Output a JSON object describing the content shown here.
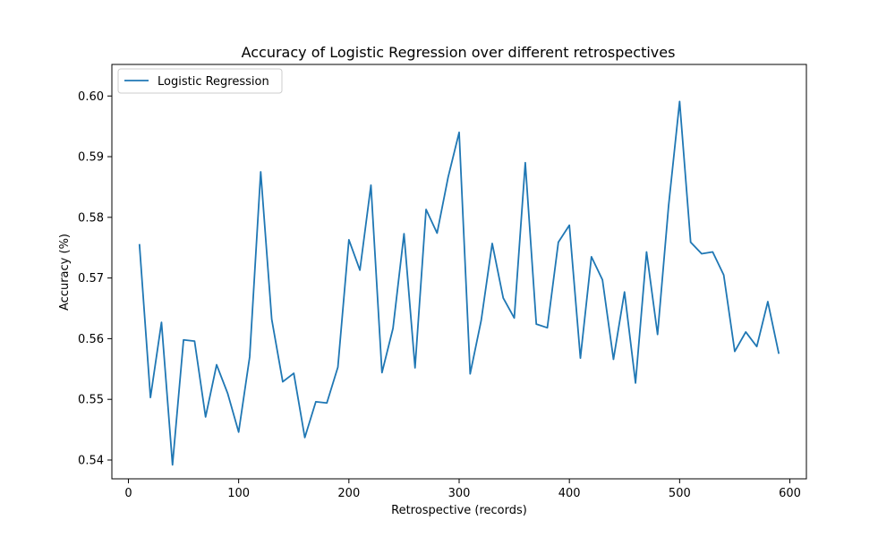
{
  "chart_data": {
    "type": "line",
    "title": "Accuracy of Logistic Regression over different retrospectives",
    "xlabel": "Retrospective (records)",
    "ylabel": "Accuracy (%)",
    "xlim": [
      -15,
      615
    ],
    "ylim": [
      0.5369,
      0.6052
    ],
    "x_ticks": [
      0,
      100,
      200,
      300,
      400,
      500,
      600
    ],
    "y_ticks": [
      0.54,
      0.55,
      0.56,
      0.57,
      0.58,
      0.59,
      0.6
    ],
    "y_tick_labels": [
      "0.54",
      "0.55",
      "0.56",
      "0.57",
      "0.58",
      "0.59",
      "0.60"
    ],
    "grid": false,
    "legend_position": "upper-left",
    "series": [
      {
        "name": "Logistic Regression",
        "color": "#1f77b4",
        "x": [
          10,
          20,
          30,
          40,
          50,
          60,
          70,
          80,
          90,
          100,
          110,
          120,
          130,
          140,
          150,
          160,
          170,
          180,
          190,
          200,
          210,
          220,
          230,
          240,
          250,
          260,
          270,
          280,
          290,
          300,
          310,
          320,
          330,
          340,
          350,
          360,
          370,
          380,
          390,
          400,
          410,
          420,
          430,
          440,
          450,
          460,
          470,
          480,
          490,
          500,
          510,
          520,
          530,
          540,
          550,
          560,
          570,
          580,
          590
        ],
        "y": [
          0.5756,
          0.5503,
          0.5627,
          0.5392,
          0.5598,
          0.5596,
          0.5471,
          0.5557,
          0.551,
          0.5446,
          0.557,
          0.5875,
          0.5632,
          0.5529,
          0.5543,
          0.5437,
          0.5496,
          0.5494,
          0.5553,
          0.5763,
          0.5713,
          0.5853,
          0.5544,
          0.5617,
          0.5773,
          0.5552,
          0.5813,
          0.5774,
          0.5866,
          0.594,
          0.5542,
          0.563,
          0.5757,
          0.5667,
          0.5634,
          0.589,
          0.5624,
          0.5618,
          0.5759,
          0.5787,
          0.5568,
          0.5735,
          0.5697,
          0.5566,
          0.5677,
          0.5527,
          0.5743,
          0.5607,
          0.5819,
          0.5991,
          0.5759,
          0.574,
          0.5743,
          0.5705,
          0.5579,
          0.5611,
          0.5587,
          0.5661,
          0.5575
        ]
      }
    ]
  }
}
